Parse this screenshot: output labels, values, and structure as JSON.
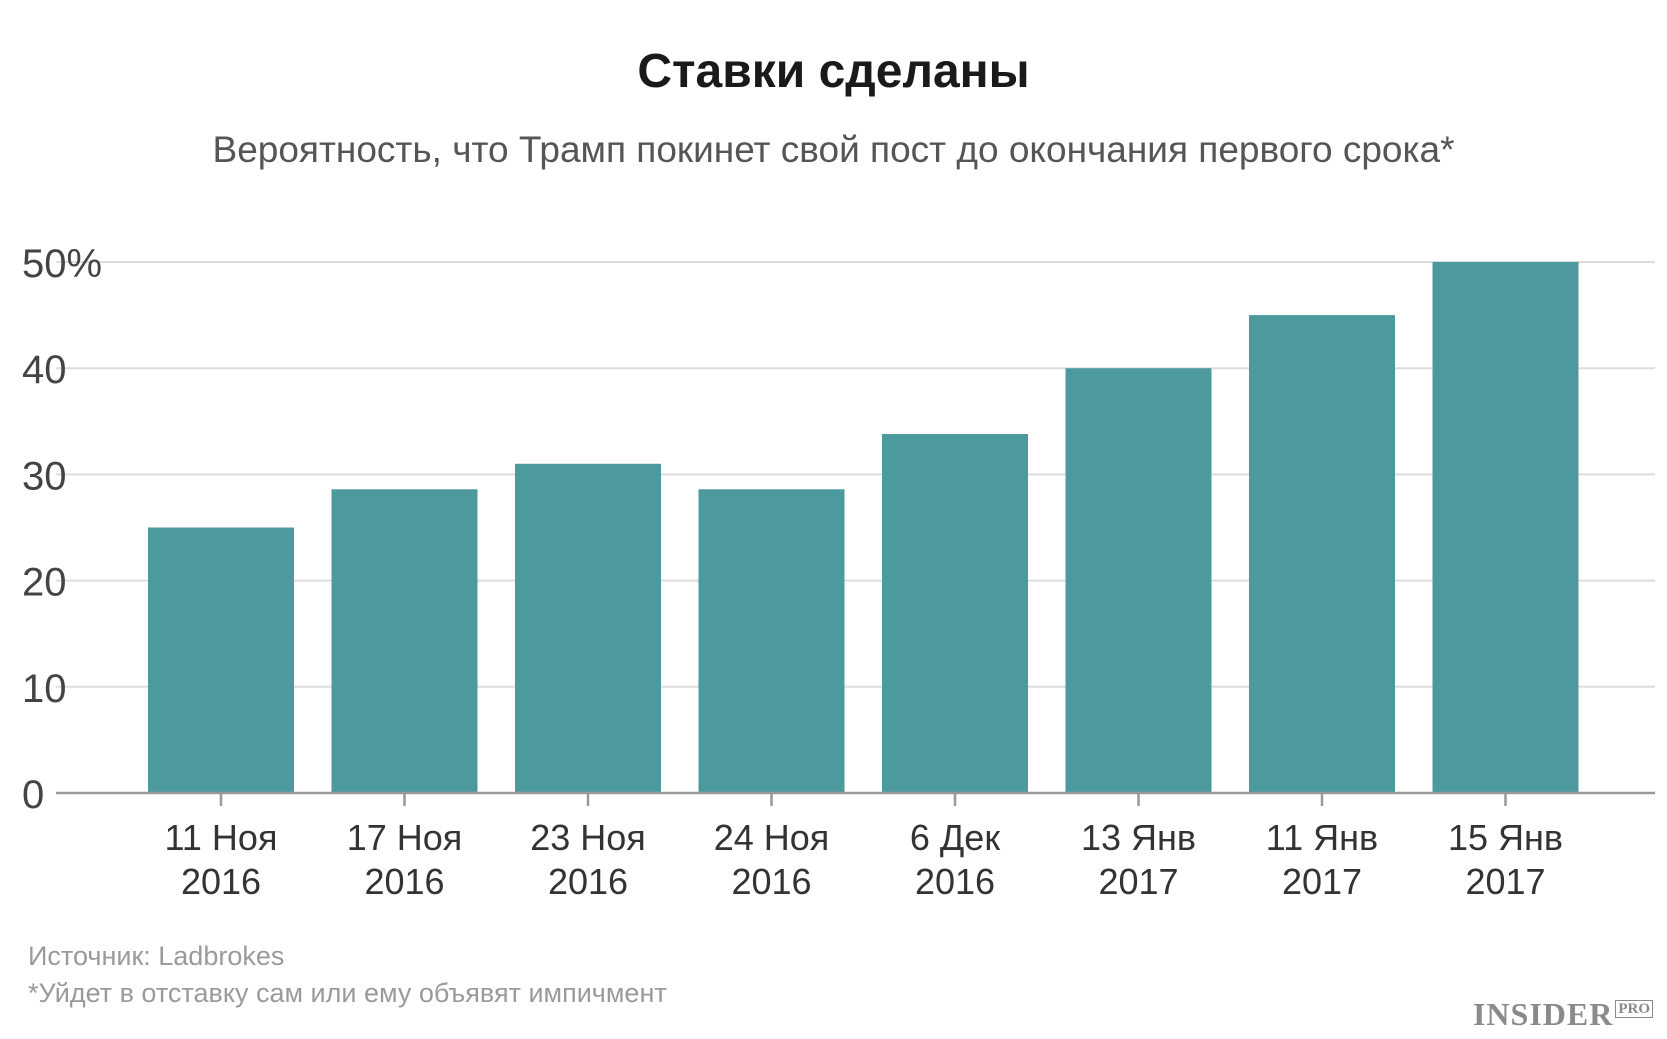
{
  "chart_data": {
    "type": "bar",
    "title": "Ставки сделаны",
    "subtitle": "Вероятность, что Трамп покинет свой пост до окончания первого срока*",
    "categories": [
      [
        "11 Ноя",
        "2016"
      ],
      [
        "17 Ноя",
        "2016"
      ],
      [
        "23 Ноя",
        "2016"
      ],
      [
        "24 Ноя",
        "2016"
      ],
      [
        "6 Дек",
        "2016"
      ],
      [
        "13 Янв",
        "2017"
      ],
      [
        "11 Янв",
        "2017"
      ],
      [
        "15 Янв",
        "2017"
      ]
    ],
    "values": [
      25,
      28.6,
      31,
      28.6,
      33.8,
      40,
      45,
      50
    ],
    "ylim": [
      0,
      50
    ],
    "yticks": [
      0,
      10,
      20,
      30,
      40,
      50
    ],
    "ytick_labels": [
      "0",
      "10",
      "20",
      "30",
      "40",
      "50%"
    ],
    "xlabel": "",
    "ylabel": "",
    "grid": true,
    "bar_color": "#4d9a9e",
    "gridline_color": "#dddddd",
    "axis_color": "#999999"
  },
  "footer": {
    "source": "Источник: Ladbrokes",
    "note": "*Уйдет в отставку сам или ему объявят импичмент"
  },
  "logo": {
    "name": "INSIDER",
    "suffix": "PRO"
  }
}
